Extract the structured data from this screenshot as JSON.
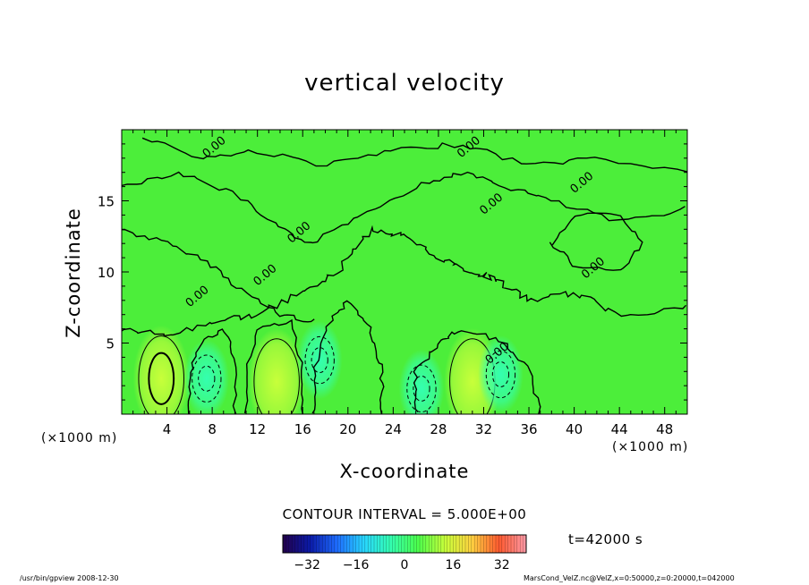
{
  "chart_data": {
    "type": "heatmap",
    "title": "vertical velocity",
    "xlabel": "X-coordinate",
    "ylabel": "Z-coordinate",
    "x_unit_label": "(×1000 m)",
    "xlim": [
      0,
      50
    ],
    "ylim": [
      0,
      20
    ],
    "x_ticks": [
      4,
      8,
      12,
      16,
      20,
      24,
      28,
      32,
      36,
      40,
      44,
      48
    ],
    "y_ticks": [
      5,
      10,
      15
    ],
    "contour_interval_label": "CONTOUR INTERVAL = 5.000E+00",
    "contour_label": "0.00",
    "colorbar": {
      "min": -40,
      "max": 40,
      "ticks": [
        -32,
        -16,
        0,
        16,
        32
      ],
      "colors": [
        "#22004a",
        "#0b1aa8",
        "#1e6cff",
        "#28d6ff",
        "#34ffb0",
        "#4cff4c",
        "#c8ff3a",
        "#ffd040",
        "#ff5a30",
        "#ff9aa8"
      ]
    },
    "background_color": "#4cee3a",
    "features": [
      {
        "kind": "updraft",
        "x": 3.5,
        "z": 2.5,
        "peak": 15
      },
      {
        "kind": "downdraft",
        "x": 7.5,
        "z": 2.5,
        "peak": -8
      },
      {
        "kind": "updraft",
        "x": 13.7,
        "z": 2.3,
        "peak": 10
      },
      {
        "kind": "downdraft",
        "x": 17.5,
        "z": 3.8,
        "peak": -4
      },
      {
        "kind": "downdraft",
        "x": 26.5,
        "z": 1.8,
        "peak": -4
      },
      {
        "kind": "updraft",
        "x": 31.0,
        "z": 2.3,
        "peak": 10
      },
      {
        "kind": "downdraft",
        "x": 33.5,
        "z": 2.8,
        "peak": -4
      }
    ]
  },
  "time_label": "t=42000 s",
  "footer": {
    "left": "/usr/bin/gpview   2008-12-30",
    "right": "MarsCond_VelZ.nc@VelZ,x=0:50000,z=0:20000,t=042000"
  }
}
